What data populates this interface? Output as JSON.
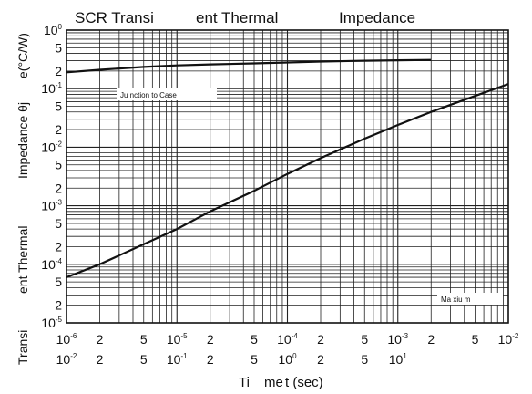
{
  "chart_data": {
    "type": "line",
    "title_parts": [
      "SCR Transi",
      "ent Thermal",
      "Impedance"
    ],
    "ylabel_parts": [
      "Transi",
      "ent Thermal",
      "Impedance θj",
      "e(°C/W)"
    ],
    "xlabel_parts": [
      "Ti",
      "me",
      "t (sec)"
    ],
    "y_scale": "log",
    "x_scale": "log",
    "ylim": [
      1e-05,
      1
    ],
    "xlim": [
      1e-06,
      0.01
    ],
    "x2lim": [
      0.01,
      100
    ],
    "grid": true,
    "y_ticks": [
      {
        "base": "10",
        "exp": "0"
      },
      "5",
      "2",
      {
        "base": "10",
        "exp": "-1"
      },
      "5",
      "2",
      {
        "base": "10",
        "exp": "-2"
      },
      "5",
      "2",
      {
        "base": "10",
        "exp": "-3"
      },
      "5",
      "2",
      {
        "base": "10",
        "exp": "-4"
      },
      "5",
      "2",
      {
        "base": "10",
        "exp": "-5"
      }
    ],
    "x_ticks_top": [
      {
        "base": "10",
        "exp": "-6"
      },
      "2",
      "5",
      {
        "base": "10",
        "exp": "-5"
      },
      "2",
      "5",
      {
        "base": "10",
        "exp": "-4"
      },
      "2",
      "5",
      {
        "base": "10",
        "exp": "-3"
      },
      "2",
      "5",
      {
        "base": "10",
        "exp": "-2"
      }
    ],
    "x_ticks_bottom": [
      {
        "base": "10",
        "exp": "-2"
      },
      "2",
      "5",
      {
        "base": "10",
        "exp": "-1"
      },
      "2",
      "5",
      {
        "base": "10",
        "exp": "0"
      },
      "2",
      "5",
      {
        "base": "10",
        "exp": "1"
      }
    ],
    "series": [
      {
        "name": "",
        "axis": "x2",
        "x": [
          0.01,
          0.02,
          0.05,
          0.1,
          0.2,
          0.5,
          1,
          2,
          5,
          10,
          20
        ],
        "y": [
          0.19,
          0.21,
          0.235,
          0.25,
          0.26,
          0.27,
          0.28,
          0.29,
          0.3,
          0.305,
          0.31
        ]
      },
      {
        "name": "",
        "axis": "x",
        "x": [
          1e-06,
          2e-06,
          5e-06,
          1e-05,
          2e-05,
          5e-05,
          0.0001,
          0.0002,
          0.0005,
          0.001,
          0.002,
          0.005,
          0.01
        ],
        "y": [
          6e-05,
          0.0001,
          0.00022,
          0.0004,
          0.0008,
          0.0018,
          0.0035,
          0.0065,
          0.014,
          0.024,
          0.04,
          0.075,
          0.12
        ]
      }
    ],
    "annotations": [
      {
        "text": "Ju nction to Case",
        "position": "upper-left"
      },
      {
        "text": "Ma xiu m",
        "position": "lower-right"
      }
    ]
  }
}
